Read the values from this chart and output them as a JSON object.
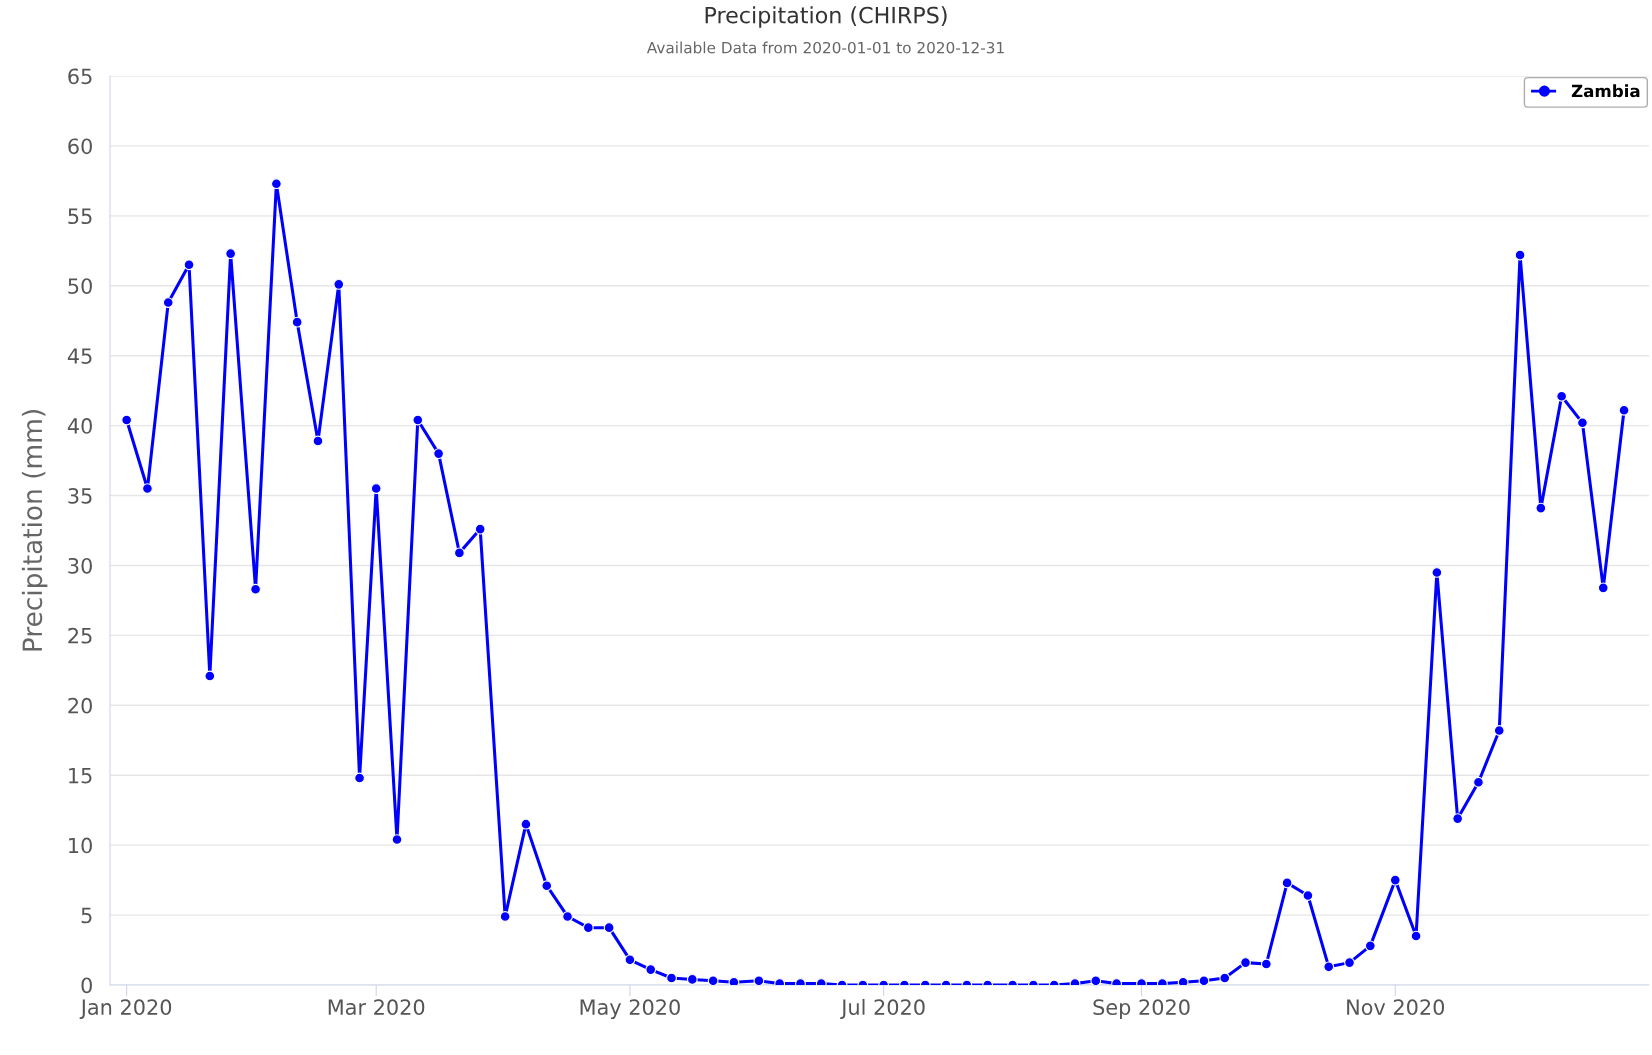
{
  "chart_data": {
    "type": "line",
    "title": "Precipitation (CHIRPS)",
    "subtitle": "Available Data from 2020-01-01 to 2020-12-31",
    "ylabel": "Precipitation (mm)",
    "x": [
      "2020-01-01",
      "2020-01-06",
      "2020-01-11",
      "2020-01-16",
      "2020-01-21",
      "2020-01-26",
      "2020-02-01",
      "2020-02-06",
      "2020-02-11",
      "2020-02-16",
      "2020-02-21",
      "2020-02-26",
      "2020-03-01",
      "2020-03-06",
      "2020-03-11",
      "2020-03-16",
      "2020-03-21",
      "2020-03-26",
      "2020-04-01",
      "2020-04-06",
      "2020-04-11",
      "2020-04-16",
      "2020-04-21",
      "2020-04-26",
      "2020-05-01",
      "2020-05-06",
      "2020-05-11",
      "2020-05-16",
      "2020-05-21",
      "2020-05-26",
      "2020-06-01",
      "2020-06-06",
      "2020-06-11",
      "2020-06-16",
      "2020-06-21",
      "2020-06-26",
      "2020-07-01",
      "2020-07-06",
      "2020-07-11",
      "2020-07-16",
      "2020-07-21",
      "2020-07-26",
      "2020-08-01",
      "2020-08-06",
      "2020-08-11",
      "2020-08-16",
      "2020-08-21",
      "2020-08-26",
      "2020-09-01",
      "2020-09-06",
      "2020-09-11",
      "2020-09-16",
      "2020-09-21",
      "2020-09-26",
      "2020-10-01",
      "2020-10-06",
      "2020-10-11",
      "2020-10-16",
      "2020-10-21",
      "2020-10-26",
      "2020-11-01",
      "2020-11-06",
      "2020-11-11",
      "2020-11-16",
      "2020-11-21",
      "2020-11-26",
      "2020-12-01",
      "2020-12-06",
      "2020-12-11",
      "2020-12-16",
      "2020-12-21",
      "2020-12-26"
    ],
    "series": [
      {
        "name": "Zambia",
        "color": "#0000ff",
        "values": [
          40.4,
          35.5,
          48.8,
          51.5,
          22.1,
          52.3,
          28.3,
          57.3,
          47.4,
          38.9,
          50.1,
          14.8,
          35.5,
          10.4,
          40.4,
          38.0,
          30.9,
          32.6,
          4.9,
          11.5,
          7.1,
          4.9,
          4.1,
          4.1,
          1.8,
          1.1,
          0.5,
          0.4,
          0.3,
          0.2,
          0.3,
          0.1,
          0.1,
          0.1,
          0.0,
          0.0,
          0.0,
          0.0,
          0.0,
          0.0,
          0.0,
          0.0,
          0.0,
          0.0,
          0.0,
          0.1,
          0.3,
          0.1,
          0.1,
          0.1,
          0.2,
          0.3,
          0.5,
          1.6,
          1.5,
          7.3,
          6.4,
          1.3,
          1.6,
          2.8,
          7.5,
          3.5,
          29.5,
          11.9,
          14.5,
          18.2,
          52.2,
          34.1,
          42.1,
          40.2,
          28.4,
          41.1
        ]
      }
    ],
    "xlim": [
      "2019-12-28",
      "2021-01-01"
    ],
    "xticks": [
      {
        "value": "2020-01-01",
        "label": "Jan 2020"
      },
      {
        "value": "2020-03-01",
        "label": "Mar 2020"
      },
      {
        "value": "2020-05-01",
        "label": "May 2020"
      },
      {
        "value": "2020-07-01",
        "label": "Jul 2020"
      },
      {
        "value": "2020-09-01",
        "label": "Sep 2020"
      },
      {
        "value": "2020-11-01",
        "label": "Nov 2020"
      }
    ],
    "ylim": [
      0,
      65
    ],
    "yticks": [
      0,
      5,
      10,
      15,
      20,
      25,
      30,
      35,
      40,
      45,
      50,
      55,
      60,
      65
    ],
    "grid": "y",
    "legend": "top right",
    "marker": "circle",
    "line_style": "solid"
  }
}
